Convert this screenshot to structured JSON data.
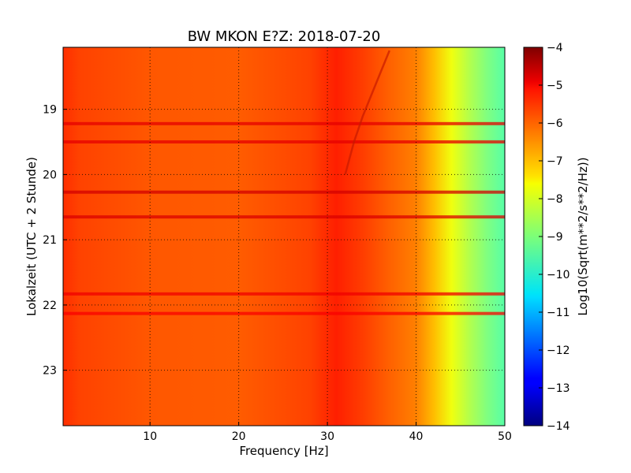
{
  "chart_data": {
    "type": "heatmap",
    "title": "BW MKON E?Z: 2018-07-20",
    "xlabel": "Frequency [Hz]",
    "ylabel": "Lokalzeit (UTC + 2 Stunde)",
    "xlim": [
      0.2,
      50
    ],
    "ylim": [
      23.85,
      18.05
    ],
    "xticks": [
      {
        "value": 10,
        "label": "10"
      },
      {
        "value": 20,
        "label": "20"
      },
      {
        "value": 30,
        "label": "30"
      },
      {
        "value": 40,
        "label": "40"
      },
      {
        "value": 50,
        "label": "50"
      }
    ],
    "yticks": [
      {
        "value": 19,
        "label": "19"
      },
      {
        "value": 20,
        "label": "20"
      },
      {
        "value": 21,
        "label": "21"
      },
      {
        "value": 22,
        "label": "22"
      },
      {
        "value": 23,
        "label": "23"
      }
    ],
    "grid": true,
    "grid_style": "dotted",
    "colormap": "jet",
    "colorbar": {
      "label": "Log10(Sqrt(m**2/s**2/Hz))",
      "range": [
        -14,
        -4
      ],
      "ticks": [
        {
          "value": -4,
          "label": "−4"
        },
        {
          "value": -5,
          "label": "−5"
        },
        {
          "value": -6,
          "label": "−6"
        },
        {
          "value": -7,
          "label": "−7"
        },
        {
          "value": -8,
          "label": "−8"
        },
        {
          "value": -9,
          "label": "−9"
        },
        {
          "value": -10,
          "label": "−10"
        },
        {
          "value": -11,
          "label": "−11"
        },
        {
          "value": -12,
          "label": "−12"
        },
        {
          "value": -13,
          "label": "−13"
        },
        {
          "value": -14,
          "label": "−14"
        }
      ]
    },
    "spectral_profile": [
      {
        "freq": 0.2,
        "value": -5.7
      },
      {
        "freq": 2,
        "value": -5.9
      },
      {
        "freq": 10,
        "value": -6.1
      },
      {
        "freq": 20,
        "value": -6.15
      },
      {
        "freq": 25,
        "value": -6.0
      },
      {
        "freq": 28,
        "value": -5.9
      },
      {
        "freq": 31,
        "value": -5.55
      },
      {
        "freq": 34,
        "value": -5.85
      },
      {
        "freq": 37,
        "value": -6.2
      },
      {
        "freq": 40,
        "value": -6.5
      },
      {
        "freq": 42,
        "value": -7.1
      },
      {
        "freq": 44,
        "value": -7.9
      },
      {
        "freq": 46,
        "value": -8.5
      },
      {
        "freq": 48,
        "value": -9.0
      },
      {
        "freq": 50,
        "value": -9.4
      }
    ],
    "horizontal_bands": [
      {
        "time": 19.22,
        "value": -5.0,
        "f_end": 50
      },
      {
        "time": 19.5,
        "value": -5.0,
        "f_end": 50
      },
      {
        "time": 20.27,
        "value": -4.8,
        "f_end": 50
      },
      {
        "time": 20.65,
        "value": -4.9,
        "f_end": 50
      },
      {
        "time": 21.83,
        "value": -5.1,
        "f_end": 50
      },
      {
        "time": 22.13,
        "value": -5.2,
        "f_end": 50
      }
    ],
    "drifting_line": [
      {
        "freq": 37.0,
        "time": 18.1
      },
      {
        "freq": 35.5,
        "time": 18.6
      },
      {
        "freq": 34.0,
        "time": 19.1
      },
      {
        "freq": 33.0,
        "time": 19.5
      },
      {
        "freq": 32.0,
        "time": 20.0
      }
    ]
  }
}
